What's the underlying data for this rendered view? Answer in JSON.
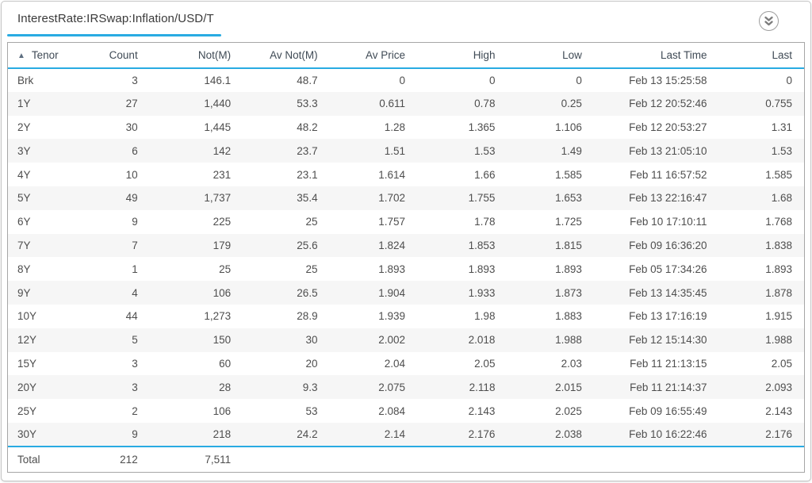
{
  "colors": {
    "accent_blue": "#29abe2",
    "stripe": "#f6f6f6",
    "table_border": "#a6a6a6",
    "card_border": "#c5c5c5",
    "header_text": "#3f4a55",
    "body_text": "#4e4e4e"
  },
  "header": {
    "title": "InterestRate:IRSwap:Inflation/USD/T",
    "collapse_icon": "double-chevron-down-icon"
  },
  "table": {
    "columns": [
      "Tenor",
      "Count",
      "Not(M)",
      "Av Not(M)",
      "Av Price",
      "High",
      "Low",
      "Last Time",
      "Last"
    ],
    "keys": [
      "tenor",
      "count",
      "not_m",
      "av_not_m",
      "av_price",
      "high",
      "low",
      "last_time",
      "last"
    ],
    "sort": {
      "column": "Tenor",
      "direction": "ascending",
      "indicator": "▲"
    },
    "rows": [
      [
        "Brk",
        "3",
        "146.1",
        "48.7",
        "0",
        "0",
        "0",
        "Feb 13 15:25:58",
        "0"
      ],
      [
        "1Y",
        "27",
        "1,440",
        "53.3",
        "0.611",
        "0.78",
        "0.25",
        "Feb 12 20:52:46",
        "0.755"
      ],
      [
        "2Y",
        "30",
        "1,445",
        "48.2",
        "1.28",
        "1.365",
        "1.106",
        "Feb 12 20:53:27",
        "1.31"
      ],
      [
        "3Y",
        "6",
        "142",
        "23.7",
        "1.51",
        "1.53",
        "1.49",
        "Feb 13 21:05:10",
        "1.53"
      ],
      [
        "4Y",
        "10",
        "231",
        "23.1",
        "1.614",
        "1.66",
        "1.585",
        "Feb 11 16:57:52",
        "1.585"
      ],
      [
        "5Y",
        "49",
        "1,737",
        "35.4",
        "1.702",
        "1.755",
        "1.653",
        "Feb 13 22:16:47",
        "1.68"
      ],
      [
        "6Y",
        "9",
        "225",
        "25",
        "1.757",
        "1.78",
        "1.725",
        "Feb 10 17:10:11",
        "1.768"
      ],
      [
        "7Y",
        "7",
        "179",
        "25.6",
        "1.824",
        "1.853",
        "1.815",
        "Feb 09 16:36:20",
        "1.838"
      ],
      [
        "8Y",
        "1",
        "25",
        "25",
        "1.893",
        "1.893",
        "1.893",
        "Feb 05 17:34:26",
        "1.893"
      ],
      [
        "9Y",
        "4",
        "106",
        "26.5",
        "1.904",
        "1.933",
        "1.873",
        "Feb 13 14:35:45",
        "1.878"
      ],
      [
        "10Y",
        "44",
        "1,273",
        "28.9",
        "1.939",
        "1.98",
        "1.883",
        "Feb 13 17:16:19",
        "1.915"
      ],
      [
        "12Y",
        "5",
        "150",
        "30",
        "2.002",
        "2.018",
        "1.988",
        "Feb 12 15:14:30",
        "1.988"
      ],
      [
        "15Y",
        "3",
        "60",
        "20",
        "2.04",
        "2.05",
        "2.03",
        "Feb 11 21:13:15",
        "2.05"
      ],
      [
        "20Y",
        "3",
        "28",
        "9.3",
        "2.075",
        "2.118",
        "2.015",
        "Feb 11 21:14:37",
        "2.093"
      ],
      [
        "25Y",
        "2",
        "106",
        "53",
        "2.084",
        "2.143",
        "2.025",
        "Feb 09 16:55:49",
        "2.143"
      ],
      [
        "30Y",
        "9",
        "218",
        "24.2",
        "2.14",
        "2.176",
        "2.038",
        "Feb 10 16:22:46",
        "2.176"
      ]
    ],
    "total": {
      "label": "Total",
      "count": "212",
      "not_m": "7,511"
    }
  }
}
